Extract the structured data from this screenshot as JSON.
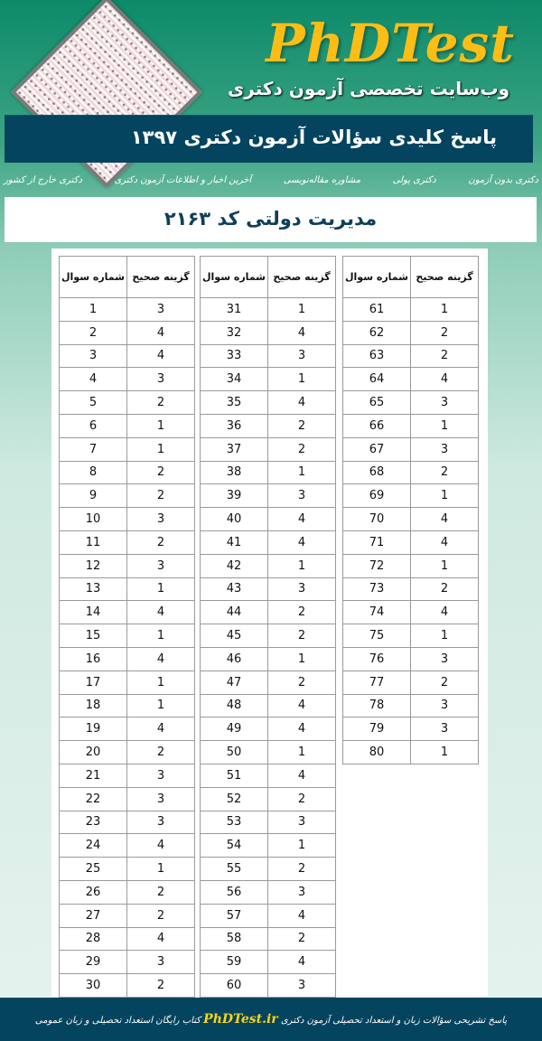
{
  "header": {
    "logo": "PhDTest",
    "subtitle": "وب‌سایت تخصصی آزمون دکتری",
    "banner": "پاسخ کلیدی سؤالات آزمون دکتری ۱۳۹۷"
  },
  "nav": [
    "دکتری بدون آزمون",
    "دکتری پولی",
    "مشاوره مقاله‌نویسی",
    "آخرین اخبار و اطلاعات آزمون دکتری",
    "دکتری خارج از کشور"
  ],
  "code_title": "مدیریت دولتی کد ۲۱۶۳",
  "table_headers": {
    "question": "شماره سوال",
    "answer": "گزینه صحیح"
  },
  "tables": [
    [
      [
        1,
        3
      ],
      [
        2,
        4
      ],
      [
        3,
        4
      ],
      [
        4,
        3
      ],
      [
        5,
        2
      ],
      [
        6,
        1
      ],
      [
        7,
        1
      ],
      [
        8,
        2
      ],
      [
        9,
        2
      ],
      [
        10,
        3
      ],
      [
        11,
        2
      ],
      [
        12,
        3
      ],
      [
        13,
        1
      ],
      [
        14,
        4
      ],
      [
        15,
        1
      ],
      [
        16,
        4
      ],
      [
        17,
        1
      ],
      [
        18,
        1
      ],
      [
        19,
        4
      ],
      [
        20,
        2
      ],
      [
        21,
        3
      ],
      [
        22,
        3
      ],
      [
        23,
        3
      ],
      [
        24,
        4
      ],
      [
        25,
        1
      ],
      [
        26,
        2
      ],
      [
        27,
        2
      ],
      [
        28,
        4
      ],
      [
        29,
        3
      ],
      [
        30,
        2
      ]
    ],
    [
      [
        31,
        1
      ],
      [
        32,
        4
      ],
      [
        33,
        3
      ],
      [
        34,
        1
      ],
      [
        35,
        4
      ],
      [
        36,
        2
      ],
      [
        37,
        2
      ],
      [
        38,
        1
      ],
      [
        39,
        3
      ],
      [
        40,
        4
      ],
      [
        41,
        4
      ],
      [
        42,
        1
      ],
      [
        43,
        3
      ],
      [
        44,
        2
      ],
      [
        45,
        2
      ],
      [
        46,
        1
      ],
      [
        47,
        2
      ],
      [
        48,
        4
      ],
      [
        49,
        4
      ],
      [
        50,
        1
      ],
      [
        51,
        4
      ],
      [
        52,
        2
      ],
      [
        53,
        3
      ],
      [
        54,
        1
      ],
      [
        55,
        2
      ],
      [
        56,
        3
      ],
      [
        57,
        4
      ],
      [
        58,
        2
      ],
      [
        59,
        4
      ],
      [
        60,
        3
      ]
    ],
    [
      [
        61,
        1
      ],
      [
        62,
        2
      ],
      [
        63,
        2
      ],
      [
        64,
        4
      ],
      [
        65,
        3
      ],
      [
        66,
        1
      ],
      [
        67,
        3
      ],
      [
        68,
        2
      ],
      [
        69,
        1
      ],
      [
        70,
        4
      ],
      [
        71,
        4
      ],
      [
        72,
        1
      ],
      [
        73,
        2
      ],
      [
        74,
        4
      ],
      [
        75,
        1
      ],
      [
        76,
        3
      ],
      [
        77,
        2
      ],
      [
        78,
        3
      ],
      [
        79,
        3
      ],
      [
        80,
        1
      ]
    ]
  ],
  "footer": {
    "before": "پاسخ تشریحی سؤالات زبان و استعداد تحصیلی آزمون دکتری",
    "brand": "PhDTest.ir",
    "after": "کتاب رایگان استعداد تحصیلی و زبان عمومی"
  },
  "colors": {
    "brand_yellow": "#fbbd16",
    "banner_blue": "#04445f",
    "teal": "#0d8a69"
  }
}
